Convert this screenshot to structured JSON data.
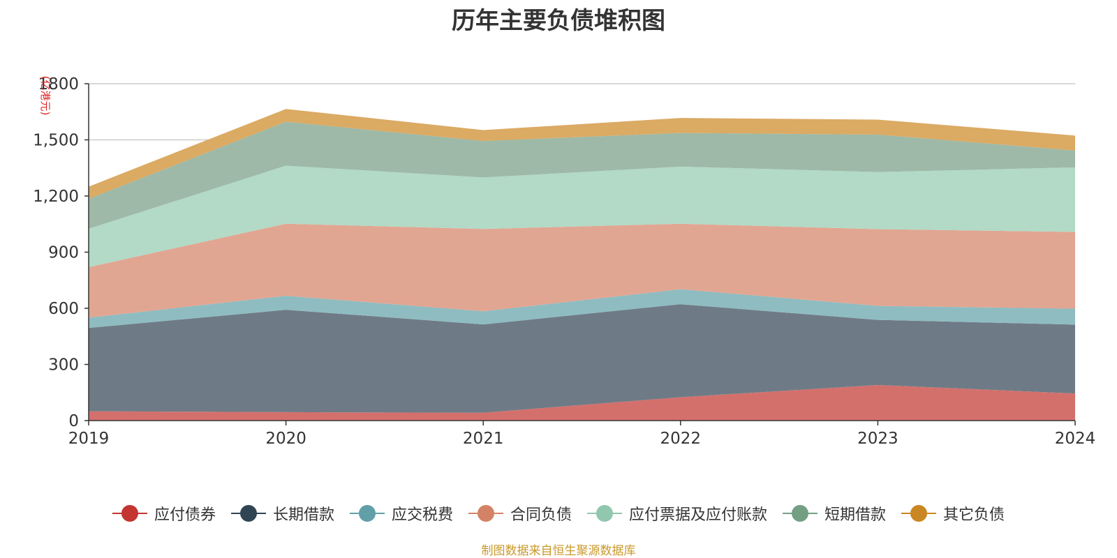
{
  "chart_data": {
    "type": "area",
    "stacked": true,
    "title": "历年主要负债堆积图",
    "ylabel": "(亿港元)",
    "x": [
      "2019",
      "2020",
      "2021",
      "2022",
      "2023",
      "2024"
    ],
    "ylim": [
      0,
      1800
    ],
    "yticks": [
      0,
      300,
      600,
      900,
      1200,
      1500,
      1800
    ],
    "ytick_labels": [
      "0",
      "300",
      "600",
      "900",
      "1,200",
      "1,500",
      "1800"
    ],
    "grid": true,
    "legend_position": "bottom",
    "series": [
      {
        "name": "应付债券",
        "color": "#c23531",
        "fill": "#d4706c",
        "values": [
          50,
          45,
          42,
          125,
          190,
          145
        ]
      },
      {
        "name": "长期借款",
        "color": "#2f4554",
        "fill": "#6e7b86",
        "values": [
          445,
          547,
          472,
          497,
          348,
          368
        ]
      },
      {
        "name": "应交税费",
        "color": "#61a0a8",
        "fill": "#8fbcc1",
        "values": [
          55,
          75,
          70,
          80,
          75,
          85
        ]
      },
      {
        "name": "合同负债",
        "color": "#d48265",
        "fill": "#e1a692",
        "values": [
          270,
          385,
          440,
          350,
          410,
          410
        ]
      },
      {
        "name": "应付票据及应付账款",
        "color": "#91c7ae",
        "fill": "#b2dac6",
        "values": [
          205,
          310,
          275,
          305,
          305,
          345
        ]
      },
      {
        "name": "短期借款",
        "color": "#749f83",
        "fill": "#9eb9a7",
        "values": [
          160,
          235,
          195,
          180,
          200,
          90
        ]
      },
      {
        "name": "其它负债",
        "color": "#ca8622",
        "fill": "#dbaa63",
        "values": [
          65,
          68,
          58,
          80,
          80,
          80
        ]
      }
    ]
  },
  "source": "制图数据来自恒生聚源数据库"
}
